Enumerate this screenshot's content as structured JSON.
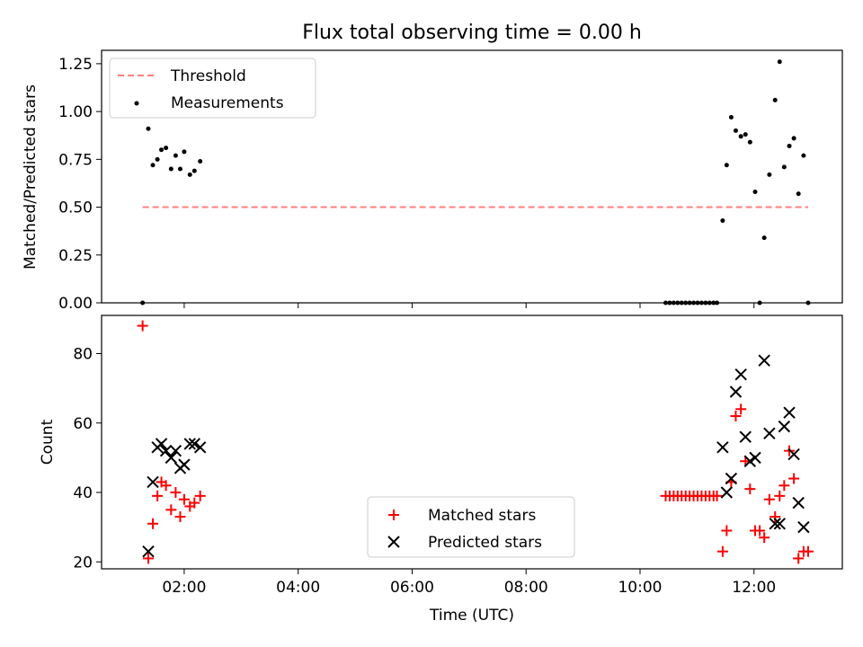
{
  "chart_data": [
    {
      "type": "scatter",
      "title": "Flux total observing time = 0.00 h",
      "xlabel": "",
      "ylabel": "Matched/Predicted stars",
      "xlim": [
        0.55,
        13.55
      ],
      "ylim": [
        0,
        1.32
      ],
      "x_ticks": [
        2,
        4,
        6,
        8,
        10,
        12
      ],
      "y_ticks": [
        0,
        0.25,
        0.5,
        0.75,
        1.0,
        1.25
      ],
      "y_tick_labels": [
        "0.00",
        "0.25",
        "0.50",
        "0.75",
        "1.00",
        "1.25"
      ],
      "legend_position": "upper-left",
      "threshold": {
        "name": "Threshold",
        "color": "#ff7f7f",
        "value": 0.5,
        "x_range": [
          1.27,
          12.95
        ]
      },
      "series": [
        {
          "name": "Measurements",
          "color": "#000000",
          "x": [
            1.27,
            1.37,
            1.45,
            1.53,
            1.6,
            1.68,
            1.77,
            1.85,
            1.93,
            2.0,
            2.1,
            2.18,
            2.28,
            10.45,
            10.52,
            10.59,
            10.66,
            10.73,
            10.8,
            10.87,
            10.94,
            11.01,
            11.08,
            11.15,
            11.22,
            11.29,
            11.35,
            11.45,
            11.52,
            11.6,
            11.68,
            11.77,
            11.85,
            11.93,
            12.02,
            12.1,
            12.18,
            12.27,
            12.37,
            12.45,
            12.53,
            12.62,
            12.7,
            12.78,
            12.87,
            12.95
          ],
          "y": [
            0.0,
            0.91,
            0.72,
            0.75,
            0.8,
            0.81,
            0.7,
            0.77,
            0.7,
            0.79,
            0.67,
            0.69,
            0.74,
            0.0,
            0.0,
            0.0,
            0.0,
            0.0,
            0.0,
            0.0,
            0.0,
            0.0,
            0.0,
            0.0,
            0.0,
            0.0,
            0.0,
            0.43,
            0.72,
            0.97,
            0.9,
            0.87,
            0.88,
            0.84,
            0.58,
            0.0,
            0.34,
            0.67,
            1.06,
            1.26,
            0.71,
            0.82,
            0.86,
            0.57,
            0.77,
            0.0
          ]
        }
      ]
    },
    {
      "type": "scatter",
      "title": "",
      "xlabel": "Time (UTC)",
      "ylabel": "Count",
      "xlim": [
        0.55,
        13.55
      ],
      "ylim": [
        18,
        91
      ],
      "x_ticks": [
        2,
        4,
        6,
        8,
        10,
        12
      ],
      "x_tick_labels": [
        "02:00",
        "04:00",
        "06:00",
        "08:00",
        "10:00",
        "12:00"
      ],
      "y_ticks": [
        20,
        40,
        60,
        80
      ],
      "y_tick_labels": [
        "20",
        "40",
        "60",
        "80"
      ],
      "legend_position": "lower-center",
      "series": [
        {
          "name": "Matched stars",
          "marker": "+",
          "color": "#ff0000",
          "x": [
            1.27,
            1.37,
            1.45,
            1.53,
            1.6,
            1.68,
            1.77,
            1.85,
            1.93,
            2.0,
            2.1,
            2.18,
            2.28,
            10.45,
            10.52,
            10.59,
            10.66,
            10.73,
            10.8,
            10.87,
            10.94,
            11.01,
            11.08,
            11.15,
            11.22,
            11.29,
            11.35,
            11.45,
            11.52,
            11.6,
            11.68,
            11.77,
            11.85,
            11.93,
            12.02,
            12.1,
            12.18,
            12.27,
            12.37,
            12.45,
            12.53,
            12.62,
            12.7,
            12.78,
            12.87,
            12.95
          ],
          "y": [
            88,
            21,
            31,
            39,
            43,
            42,
            35,
            40,
            33,
            38,
            36,
            37,
            39,
            39,
            39,
            39,
            39,
            39,
            39,
            39,
            39,
            39,
            39,
            39,
            39,
            39,
            39,
            23,
            29,
            43,
            62,
            64,
            49,
            41,
            29,
            29,
            27,
            38,
            33,
            39,
            42,
            52,
            44,
            21,
            23,
            23
          ]
        },
        {
          "name": "Predicted stars",
          "marker": "x",
          "color": "#000000",
          "x": [
            1.37,
            1.45,
            1.53,
            1.6,
            1.68,
            1.77,
            1.85,
            1.93,
            2.0,
            2.1,
            2.18,
            2.28,
            11.45,
            11.52,
            11.6,
            11.68,
            11.77,
            11.85,
            11.93,
            12.02,
            12.18,
            12.27,
            12.37,
            12.45,
            12.53,
            12.62,
            12.7,
            12.78,
            12.87
          ],
          "y": [
            23,
            43,
            53,
            54,
            52,
            50,
            52,
            47,
            48,
            54,
            54,
            53,
            53,
            40,
            44,
            69,
            74,
            56,
            49,
            50,
            78,
            57,
            31,
            31,
            59,
            63,
            51,
            37,
            30
          ]
        }
      ]
    }
  ]
}
